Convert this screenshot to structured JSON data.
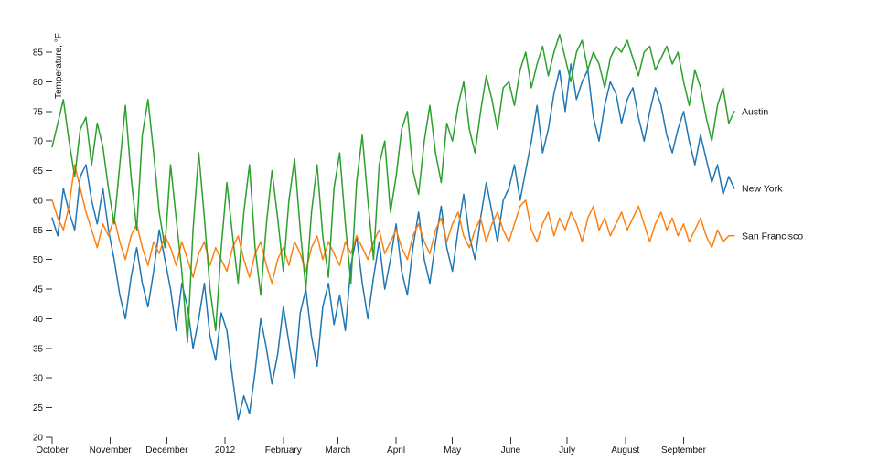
{
  "chart_data": {
    "type": "line",
    "title": "",
    "ylabel": "Temperature, °F",
    "xlabel": "",
    "x_unit": "days since October 1 (start of period shown)",
    "x_tick_labels": [
      "October",
      "November",
      "December",
      "2012",
      "February",
      "March",
      "April",
      "May",
      "June",
      "July",
      "August",
      "September"
    ],
    "x_tick_positions": [
      0,
      31,
      61,
      92,
      123,
      152,
      183,
      213,
      244,
      274,
      305,
      336
    ],
    "xlim": [
      0,
      364
    ],
    "ylim": [
      20,
      85
    ],
    "y_ticks": [
      20,
      25,
      30,
      35,
      40,
      45,
      50,
      55,
      60,
      65,
      70,
      75,
      80,
      85
    ],
    "grid": false,
    "legend_position": "end-of-line labels at right edge",
    "x": [
      0,
      3,
      6,
      9,
      12,
      15,
      18,
      21,
      24,
      27,
      30,
      33,
      36,
      39,
      42,
      45,
      48,
      51,
      54,
      57,
      60,
      63,
      66,
      69,
      72,
      75,
      78,
      81,
      84,
      87,
      90,
      93,
      96,
      99,
      102,
      105,
      108,
      111,
      114,
      117,
      120,
      123,
      126,
      129,
      132,
      135,
      138,
      141,
      144,
      147,
      150,
      153,
      156,
      159,
      162,
      165,
      168,
      171,
      174,
      177,
      180,
      183,
      186,
      189,
      192,
      195,
      198,
      201,
      204,
      207,
      210,
      213,
      216,
      219,
      222,
      225,
      228,
      231,
      234,
      237,
      240,
      243,
      246,
      249,
      252,
      255,
      258,
      261,
      264,
      267,
      270,
      273,
      276,
      279,
      282,
      285,
      288,
      291,
      294,
      297,
      300,
      303,
      306,
      309,
      312,
      315,
      318,
      321,
      324,
      327,
      330,
      333,
      336,
      339,
      342,
      345,
      348,
      351,
      354,
      357,
      360,
      363
    ],
    "series": [
      {
        "name": "New York",
        "color": "#1f77b4",
        "values": [
          57,
          54,
          62,
          58,
          55,
          64,
          66,
          60,
          56,
          62,
          55,
          50,
          44,
          40,
          47,
          52,
          46,
          42,
          48,
          55,
          50,
          45,
          38,
          46,
          42,
          35,
          40,
          46,
          37,
          33,
          41,
          38,
          30,
          23,
          27,
          24,
          31,
          40,
          35,
          29,
          34,
          42,
          36,
          30,
          41,
          45,
          37,
          32,
          42,
          46,
          39,
          44,
          38,
          49,
          54,
          46,
          40,
          47,
          53,
          45,
          50,
          56,
          48,
          44,
          52,
          58,
          50,
          46,
          53,
          59,
          52,
          48,
          55,
          61,
          54,
          50,
          57,
          63,
          58,
          53,
          60,
          62,
          66,
          60,
          65,
          70,
          76,
          68,
          72,
          78,
          82,
          75,
          83,
          77,
          80,
          82,
          74,
          70,
          76,
          80,
          78,
          73,
          77,
          79,
          74,
          70,
          75,
          79,
          76,
          71,
          68,
          72,
          75,
          70,
          66,
          71,
          67,
          63,
          66,
          61,
          64,
          62
        ]
      },
      {
        "name": "San Francisco",
        "color": "#ff7f0e",
        "values": [
          60,
          57,
          55,
          59,
          66,
          62,
          58,
          55,
          52,
          56,
          54,
          57,
          53,
          50,
          54,
          56,
          52,
          49,
          53,
          51,
          54,
          52,
          49,
          53,
          50,
          47,
          51,
          53,
          49,
          52,
          50,
          48,
          52,
          54,
          50,
          47,
          51,
          53,
          49,
          46,
          50,
          52,
          49,
          53,
          51,
          48,
          52,
          54,
          50,
          53,
          51,
          49,
          53,
          51,
          54,
          52,
          50,
          53,
          55,
          51,
          53,
          55,
          52,
          50,
          54,
          56,
          53,
          51,
          55,
          57,
          53,
          56,
          58,
          54,
          52,
          55,
          57,
          53,
          56,
          58,
          55,
          53,
          56,
          59,
          60,
          55,
          53,
          56,
          58,
          54,
          57,
          55,
          58,
          56,
          53,
          57,
          59,
          55,
          57,
          54,
          56,
          58,
          55,
          57,
          59,
          56,
          53,
          56,
          58,
          55,
          57,
          54,
          56,
          53,
          55,
          57,
          54,
          52,
          55,
          53,
          54,
          54
        ]
      },
      {
        "name": "Austin",
        "color": "#2ca02c",
        "values": [
          69,
          73,
          77,
          70,
          64,
          72,
          74,
          66,
          73,
          69,
          62,
          56,
          66,
          76,
          64,
          55,
          71,
          77,
          68,
          58,
          52,
          66,
          57,
          48,
          36,
          55,
          68,
          57,
          45,
          38,
          52,
          63,
          54,
          46,
          58,
          66,
          52,
          44,
          56,
          65,
          57,
          48,
          60,
          67,
          55,
          45,
          58,
          66,
          54,
          47,
          62,
          68,
          56,
          46,
          63,
          71,
          60,
          50,
          66,
          70,
          58,
          64,
          72,
          75,
          65,
          61,
          70,
          76,
          68,
          63,
          73,
          70,
          76,
          80,
          72,
          68,
          75,
          81,
          77,
          72,
          79,
          80,
          76,
          82,
          85,
          79,
          83,
          86,
          81,
          85,
          88,
          84,
          80,
          85,
          87,
          82,
          85,
          83,
          79,
          84,
          86,
          85,
          87,
          84,
          81,
          85,
          86,
          82,
          84,
          86,
          83,
          85,
          80,
          76,
          82,
          79,
          74,
          70,
          76,
          79,
          73,
          75
        ]
      }
    ]
  }
}
